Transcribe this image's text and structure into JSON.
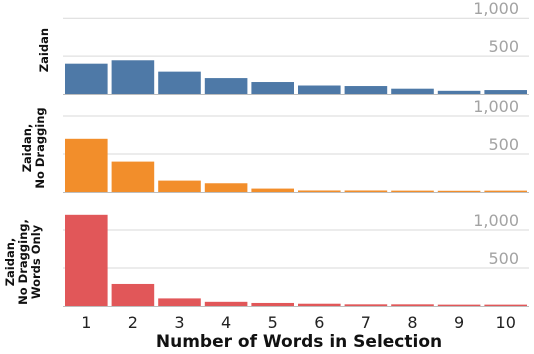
{
  "chart_data": {
    "type": "bar",
    "xlabel": "Number of Words in Selection",
    "categories": [
      "1",
      "2",
      "3",
      "4",
      "5",
      "6",
      "7",
      "8",
      "9",
      "10"
    ],
    "y_ticks": [
      500,
      1000
    ],
    "y_tick_labels": [
      "500",
      "1,000"
    ],
    "ylim": [
      0,
      1200
    ],
    "grid": true,
    "panels": [
      {
        "row_label": [
          "Zaidan"
        ],
        "color": "#4e79a7",
        "values": [
          400,
          445,
          295,
          210,
          158,
          112,
          105,
          70,
          42,
          52
        ]
      },
      {
        "row_label": [
          "Zaidan,",
          "No Dragging"
        ],
        "color": "#f28e2b",
        "values": [
          700,
          400,
          150,
          115,
          45,
          20,
          20,
          18,
          16,
          18
        ]
      },
      {
        "row_label": [
          "Zaidan,",
          "No Dragging,",
          "Words Only"
        ],
        "color": "#e15759",
        "values": [
          1200,
          290,
          100,
          55,
          40,
          30,
          22,
          22,
          18,
          18
        ]
      }
    ]
  }
}
